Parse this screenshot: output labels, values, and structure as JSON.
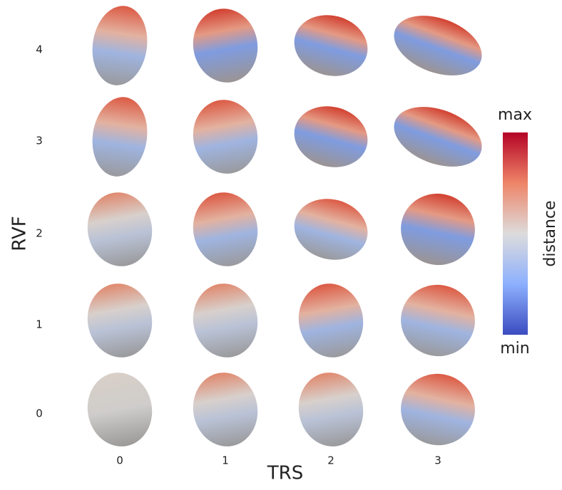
{
  "y_axis": {
    "label": "RVF",
    "ticks": [
      "4",
      "3",
      "2",
      "1",
      "0"
    ]
  },
  "x_axis": {
    "label": "TRS",
    "ticks": [
      "0",
      "1",
      "2",
      "3"
    ]
  },
  "colorbar": {
    "max_label": "max",
    "min_label": "min",
    "title": "distance"
  }
}
